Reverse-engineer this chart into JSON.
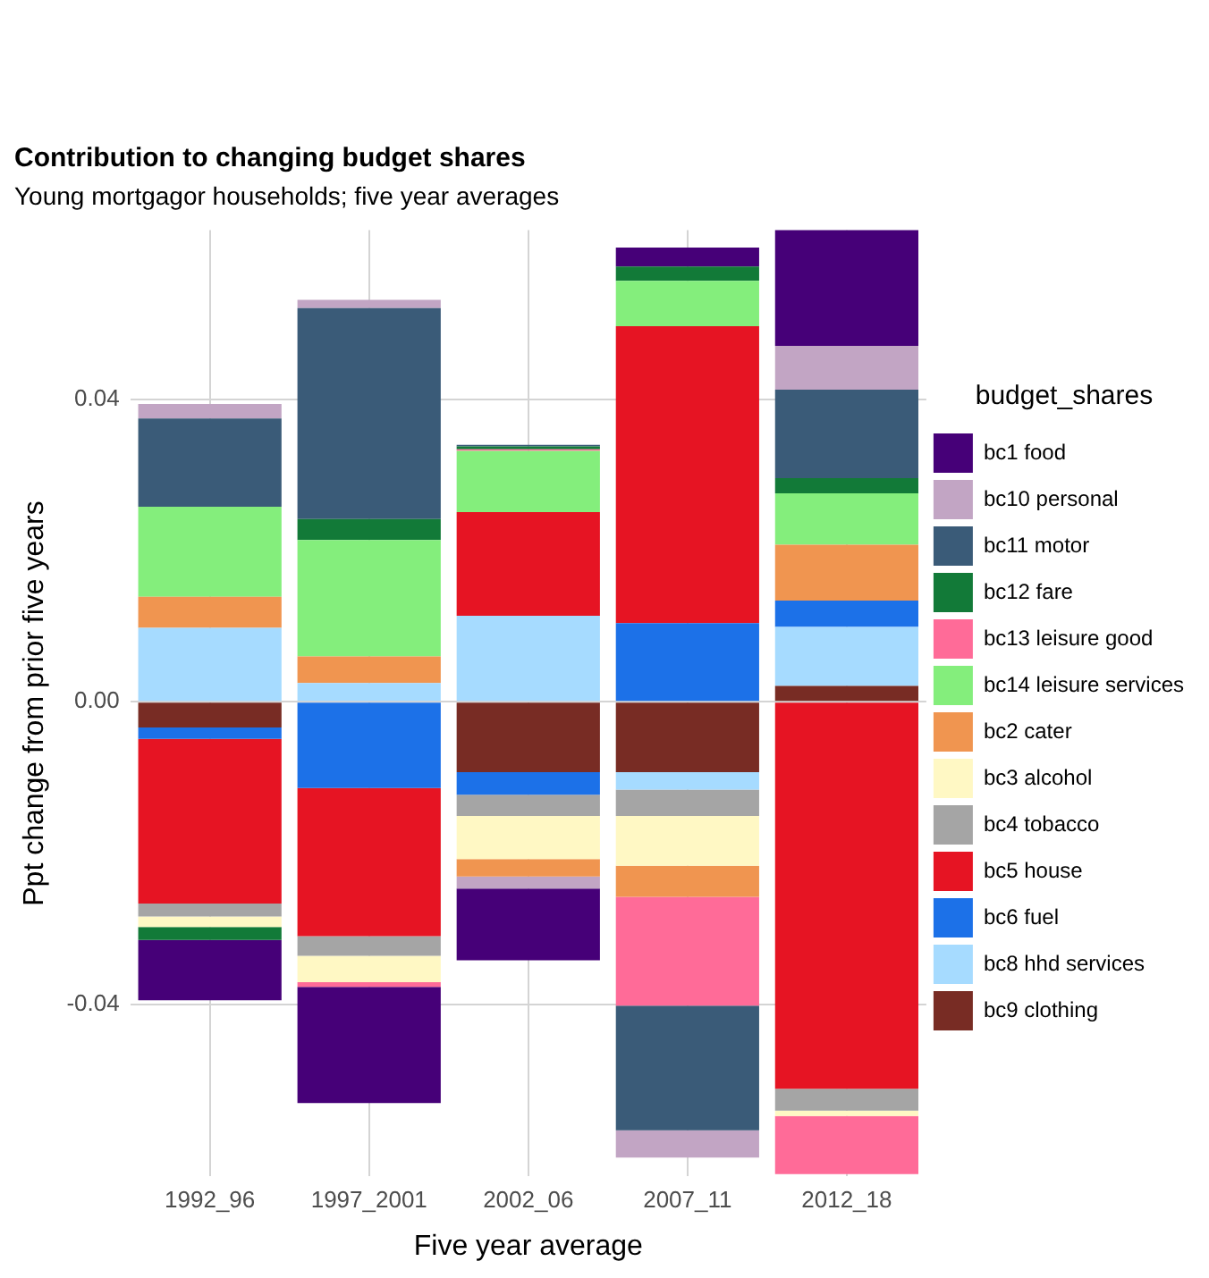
{
  "chart_data": {
    "type": "bar",
    "title": "Contribution to changing budget shares",
    "subtitle": "Young mortgagor households; five year averages",
    "xlabel": "Five year average",
    "ylabel": "Ppt change from prior five years",
    "legend_title": "budget_shares",
    "categories": [
      "1992_96",
      "1997_2001",
      "2002_06",
      "2007_11",
      "2012_18"
    ],
    "stacked": true,
    "ylim": [
      -0.0628,
      0.0624
    ],
    "yticks": [
      {
        "value": -0.04,
        "label": "-0.04"
      },
      {
        "value": 0,
        "label": "0.00"
      },
      {
        "value": 0.04,
        "label": "0.04"
      }
    ],
    "grid": true,
    "legend": "right",
    "series": [
      {
        "name": "bc9 clothing",
        "color": "#782c24",
        "values": [
          -0.0034,
          null,
          -0.0093,
          -0.0093,
          0.0021
        ]
      },
      {
        "name": "bc8 hhd services",
        "color": "#a6dbff",
        "values": [
          0.0098,
          0.0025,
          0.0114,
          -0.0023,
          0.0078
        ]
      },
      {
        "name": "bc6 fuel",
        "color": "#1c71e8",
        "values": [
          -0.0015,
          -0.0114,
          -0.003,
          0.0104,
          0.0035
        ]
      },
      {
        "name": "bc5 house",
        "color": "#e61423",
        "values": [
          -0.0218,
          -0.0196,
          0.0137,
          0.0393,
          -0.0512
        ]
      },
      {
        "name": "bc4 tobacco",
        "color": "#a5a5a5",
        "values": [
          -0.0017,
          -0.0026,
          -0.0028,
          -0.0035,
          -0.0029
        ]
      },
      {
        "name": "bc3 alcohol",
        "color": "#fff8c4",
        "values": [
          -0.0014,
          -0.0035,
          -0.0057,
          -0.0066,
          -0.0007
        ]
      },
      {
        "name": "bc2 cater",
        "color": "#f09550",
        "values": [
          0.0041,
          0.0035,
          -0.0023,
          -0.0041,
          0.0074
        ]
      },
      {
        "name": "bc14 leisure services",
        "color": "#84ee7c",
        "values": [
          0.0119,
          0.0154,
          0.0081,
          0.006,
          0.0068
        ]
      },
      {
        "name": "bc13 leisure good",
        "color": "#ff6b98",
        "values": [
          null,
          -0.0006,
          0.0002,
          -0.0144,
          -0.0077
        ]
      },
      {
        "name": "bc12 fare",
        "color": "#127a38",
        "values": [
          -0.0017,
          0.0028,
          0.0004,
          0.0019,
          0.002
        ]
      },
      {
        "name": "bc11 motor",
        "color": "#3a5b78",
        "values": [
          0.0117,
          0.0279,
          0.0002,
          -0.0165,
          0.0117
        ]
      },
      {
        "name": "bc10 personal",
        "color": "#c2a5c4",
        "values": [
          0.0019,
          0.0011,
          -0.0016,
          -0.0036,
          0.0058
        ]
      },
      {
        "name": "bc1 food",
        "color": "#460078",
        "values": [
          -0.008,
          -0.0154,
          -0.0095,
          0.0025,
          0.0154
        ]
      }
    ]
  }
}
